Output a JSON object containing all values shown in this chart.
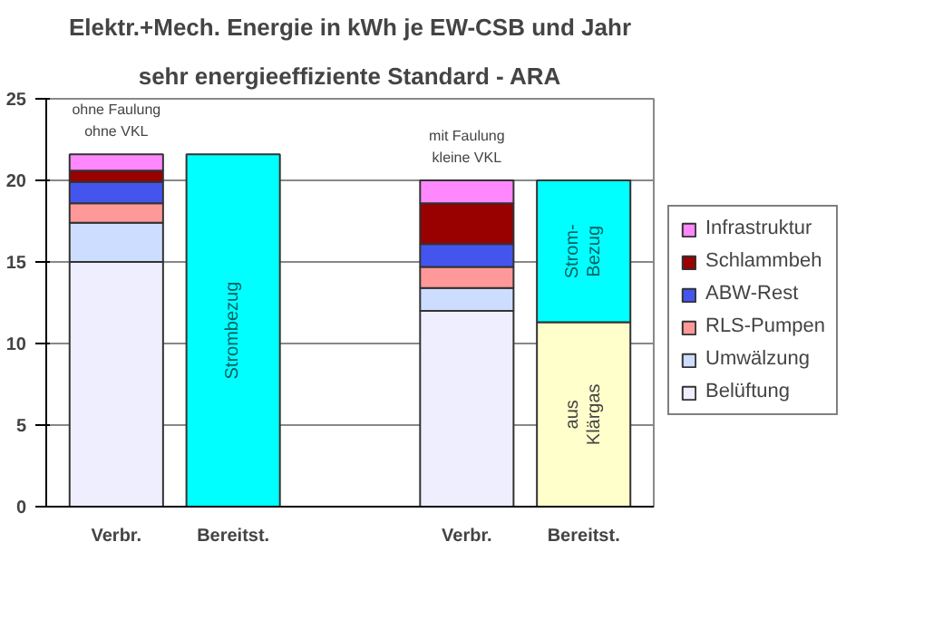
{
  "chart_data": {
    "type": "bar",
    "stacked": true,
    "title": "Elektr.+Mech. Energie in kWh je EW-CSB und Jahr",
    "subtitle": "sehr energieeffiziente Standard - ARA",
    "categories": [
      "Verbr.",
      "Bereitst.",
      null,
      "Verbr.",
      "Bereitst."
    ],
    "series": [
      {
        "name": "Belüftung",
        "color": "#eeeeff",
        "values": [
          15.0,
          null,
          null,
          12.0,
          null
        ]
      },
      {
        "name": "Umwälzung",
        "color": "#ccddff",
        "values": [
          2.4,
          null,
          null,
          1.4,
          null
        ]
      },
      {
        "name": "RLS-Pumpen",
        "color": "#ff9999",
        "values": [
          1.2,
          null,
          null,
          1.3,
          null
        ]
      },
      {
        "name": "ABW-Rest",
        "color": "#4455ee",
        "values": [
          1.3,
          null,
          null,
          1.4,
          null
        ]
      },
      {
        "name": "Schlammbeh",
        "color": "#990000",
        "values": [
          0.7,
          null,
          null,
          2.5,
          null
        ]
      },
      {
        "name": "Infrastruktur",
        "color": "#ff88ff",
        "values": [
          1.0,
          null,
          null,
          1.4,
          null
        ]
      },
      {
        "color": "#ffffcc",
        "values": [
          null,
          null,
          null,
          null,
          11.3
        ]
      },
      {
        "color": "#00ffff",
        "values": [
          null,
          21.6,
          null,
          null,
          8.7
        ]
      }
    ],
    "annotations": [
      "ohne Faulung\nohne VKL",
      "mit Faulung\nkleine VKL",
      "Strombezug",
      "Strom-\nBezug",
      "aus\nKlärgas"
    ],
    "ylim": [
      0,
      25
    ],
    "yticks": [
      0,
      5,
      10,
      15,
      20,
      25
    ],
    "grid": "y",
    "legend": "right"
  }
}
